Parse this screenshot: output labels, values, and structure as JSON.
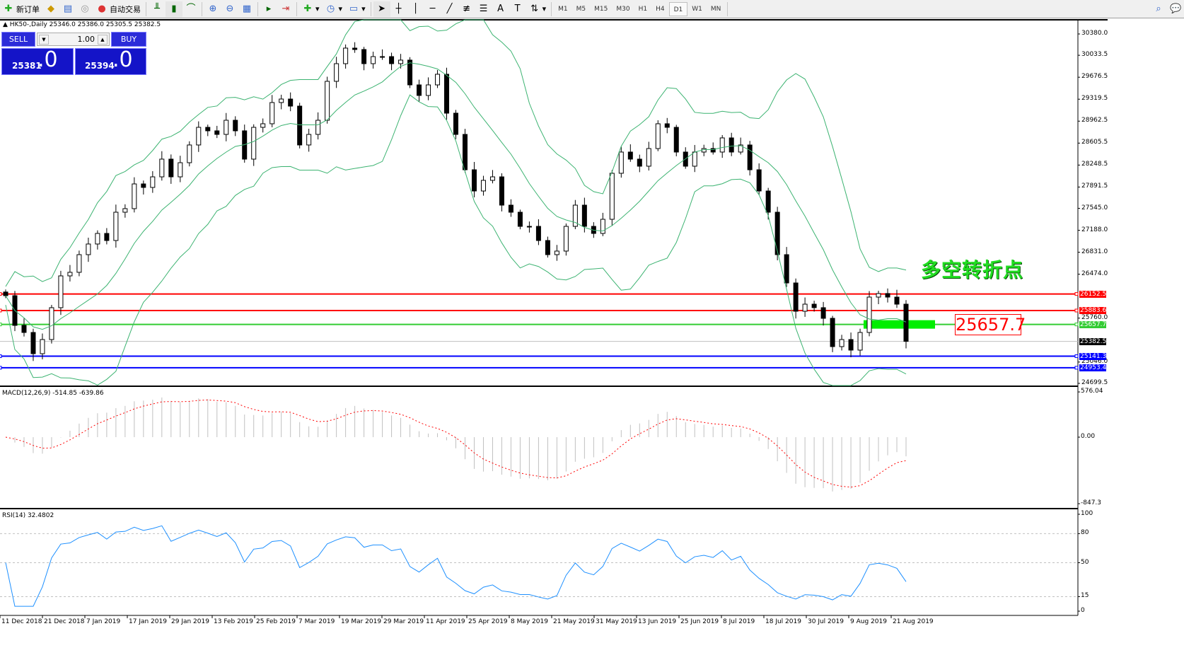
{
  "toolbar": {
    "new_order": "新订单",
    "auto_trading": "自动交易",
    "icons": [
      "new-order-icon",
      "market-watch-icon",
      "navigator-icon",
      "signals-icon",
      "auto-trading-icon",
      "bar-chart-icon",
      "candlestick-icon",
      "line-chart-icon",
      "zoom-in-icon",
      "zoom-out-icon",
      "tile-windows-icon",
      "autoscroll-icon",
      "chart-shift-icon",
      "indicators-icon",
      "periods-icon",
      "templates-icon",
      "cursor-icon",
      "crosshair-icon",
      "vertical-line-icon",
      "horizontal-line-icon",
      "trendline-icon",
      "fibonacci-icon",
      "fibo-fan-icon",
      "text-icon",
      "text-label-icon",
      "arrows-icon",
      "search-icon",
      "chat-icon"
    ],
    "timeframes": [
      "M1",
      "M5",
      "M15",
      "M30",
      "H1",
      "H4",
      "D1",
      "W1",
      "MN"
    ],
    "active_timeframe": "D1"
  },
  "chart": {
    "header": "HK50-,Daily  25346.0 25386.0 25305.5 25382.5",
    "trade_panel": {
      "sell": "SELL",
      "buy": "BUY",
      "volume": "1.00",
      "bid_main": "25381",
      "bid_frac": ".0",
      "ask_main": "25394",
      "ask_frac": ".0"
    },
    "annotation": "多空转折点",
    "price_box": "25657.7",
    "price_ticks": [
      "30380.0",
      "30033.5",
      "29676.5",
      "29319.5",
      "28962.5",
      "28605.5",
      "28248.5",
      "27891.5",
      "27545.0",
      "27188.0",
      "26831.0",
      "26474.0",
      "25760.0",
      "25046.0",
      "24699.5"
    ],
    "hlines": [
      {
        "value": "26152.5",
        "color": "#ff0000"
      },
      {
        "value": "25883.6",
        "color": "#ff0000"
      },
      {
        "value": "25657.7",
        "color": "#33cc33"
      },
      {
        "value": "25141.3",
        "color": "#0000ff"
      },
      {
        "value": "24953.4",
        "color": "#0000ff"
      }
    ],
    "current_price": "25382.5",
    "colors": {
      "bands": "#3cb371",
      "macd_hist": "#c0c0c0",
      "macd_signal": "#ff0000",
      "rsi": "#1e90ff",
      "zone": "#00ee00"
    },
    "closes": [
      26125,
      25642,
      25527,
      25182,
      25412,
      25930,
      26447,
      26505,
      26792,
      26965,
      27137,
      27022,
      27482,
      27540,
      27942,
      27885,
      28057,
      28345,
      28057,
      28287,
      28575,
      28862,
      28805,
      28747,
      28977,
      28805,
      28345,
      28862,
      28920,
      29265,
      29322,
      29207,
      28575,
      28747,
      28977,
      29610,
      29897,
      30150,
      30127,
      29897,
      30012,
      30012,
      29897,
      29955,
      29552,
      29380,
      29552,
      29725,
      29092,
      28747,
      28172,
      27827,
      28000,
      28057,
      27597,
      27482,
      27252,
      27252,
      27022,
      26792,
      26850,
      27252,
      27597,
      27252,
      27137,
      27367,
      28115,
      28460,
      28345,
      28230,
      28517,
      28920,
      28862,
      28460,
      28230,
      28460,
      28517,
      28460,
      28690,
      28460,
      28575,
      28172,
      27827,
      27482,
      26792,
      26332,
      25872,
      25987,
      25930,
      25757,
      25297,
      25412,
      25240,
      25527,
      26102,
      26160,
      26102,
      25987,
      25382.5
    ]
  },
  "macd": {
    "label": "MACD(12,26,9) -514.85 -639.86",
    "ticks": [
      "576.04",
      "0.00",
      "-847.3"
    ]
  },
  "rsi": {
    "label": "RSI(14) 32.4802",
    "ticks": [
      "100",
      "80",
      "50",
      "15",
      "0"
    ]
  },
  "dates": [
    "11 Dec 2018",
    "21 Dec 2018",
    "7 Jan 2019",
    "17 Jan 2019",
    "29 Jan 2019",
    "13 Feb 2019",
    "25 Feb 2019",
    "7 Mar 2019",
    "19 Mar 2019",
    "29 Mar 2019",
    "11 Apr 2019",
    "25 Apr 2019",
    "8 May 2019",
    "21 May 2019",
    "31 May 2019",
    "13 Jun 2019",
    "25 Jun 2019",
    "8 Jul 2019",
    "18 Jul 2019",
    "30 Jul 2019",
    "9 Aug 2019",
    "21 Aug 2019"
  ]
}
